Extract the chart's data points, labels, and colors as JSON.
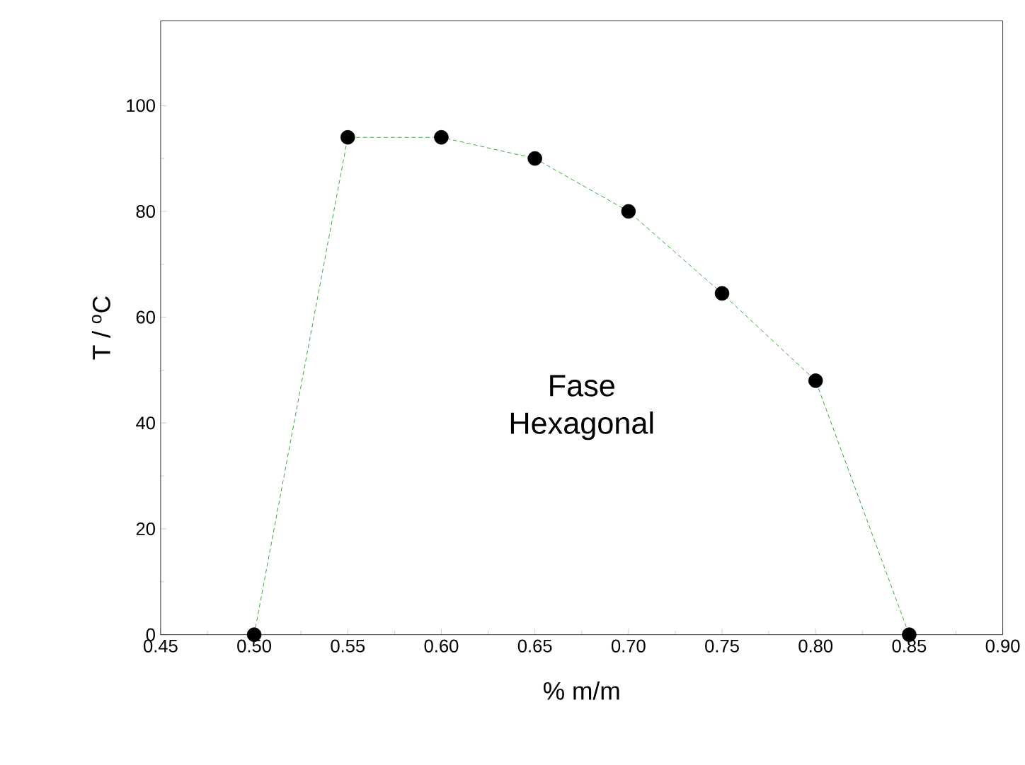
{
  "chart_data": {
    "type": "line",
    "xlabel": "% m/m",
    "ylabel": "T / $^{o}$C",
    "x": [
      0.5,
      0.55,
      0.6,
      0.65,
      0.7,
      0.75,
      0.8,
      0.85
    ],
    "series": [
      {
        "color": "#009900",
        "line_style": "dashed",
        "values": [
          0,
          94,
          94,
          90,
          80,
          64.5,
          48,
          0
        ]
      },
      {
        "type": "scatter",
        "color": "#000000",
        "marker": "circle",
        "values": [
          0,
          94,
          94,
          90,
          80,
          64.5,
          48,
          0
        ]
      }
    ],
    "xlim": [
      0.45,
      0.9
    ],
    "ylim": [
      0,
      116
    ],
    "xticks": [
      {
        "value": 0.45,
        "label": "0.45"
      },
      {
        "value": 0.5,
        "label": "0.50"
      },
      {
        "value": 0.55,
        "label": "0.55"
      },
      {
        "value": 0.6,
        "label": "0.60"
      },
      {
        "value": 0.65,
        "label": "0.65"
      },
      {
        "value": 0.7,
        "label": "0.70"
      },
      {
        "value": 0.75,
        "label": "0.75"
      },
      {
        "value": 0.8,
        "label": "0.80"
      },
      {
        "value": 0.85,
        "label": "0.85"
      },
      {
        "value": 0.9,
        "label": "0.90"
      }
    ],
    "yticks": [
      0,
      20,
      40,
      60,
      80,
      100
    ],
    "annotations": [
      "Fase Hexagonal"
    ],
    "grid": false
  }
}
